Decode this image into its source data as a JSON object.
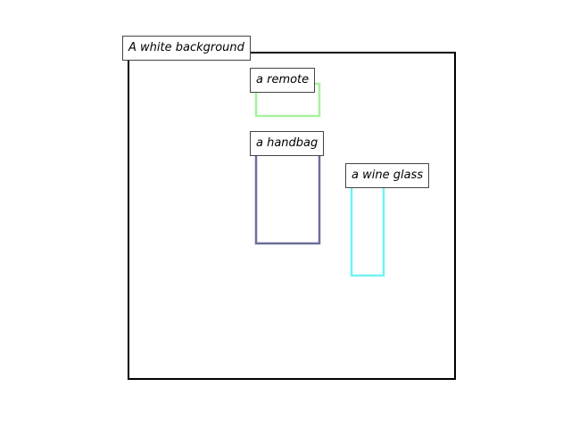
{
  "scene": {
    "caption": "A white background",
    "frame_color": "#000000"
  },
  "objects": [
    {
      "key": "remote",
      "label": "a remote",
      "color": "#a8f0a0"
    },
    {
      "key": "handbag",
      "label": "a handbag",
      "color": "#6e6e9a"
    },
    {
      "key": "wineglass",
      "label": "a wine glass",
      "color": "#70f2f2"
    }
  ]
}
